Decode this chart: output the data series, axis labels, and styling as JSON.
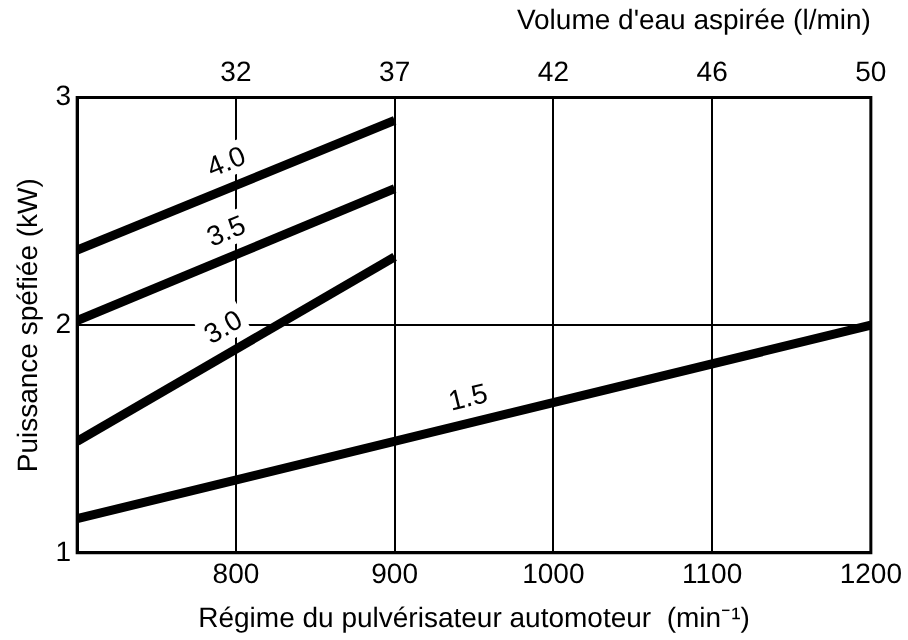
{
  "chart_data": {
    "type": "line",
    "xlabel": "Régime du pulvérisateur automoteur  (min⁻¹)",
    "ylabel": "Puissance spéfiée (kW)",
    "x2label": "Volume d'eau aspirée (l/min)",
    "xlim": [
      700,
      1200
    ],
    "xticks": [
      800,
      900,
      1000,
      1100,
      1200
    ],
    "annotations": [
      "32",
      "37",
      "42",
      "46",
      "50"
    ],
    "ylim": [
      1,
      3
    ],
    "yticks": [
      1,
      2,
      3
    ],
    "grid": true,
    "legend": false,
    "marker": "none",
    "line_style": "solid",
    "series": [
      {
        "name": "4.0",
        "color": "#000000",
        "x": [
          700,
          900
        ],
        "values": [
          2.33,
          2.9
        ]
      },
      {
        "name": "3.5",
        "color": "#000000",
        "x": [
          700,
          900
        ],
        "values": [
          2.02,
          2.6
        ]
      },
      {
        "name": "3.0",
        "color": "#000000",
        "x": [
          700,
          900
        ],
        "values": [
          1.49,
          2.3
        ]
      },
      {
        "name": "1.5",
        "color": "#000000",
        "x": [
          700,
          1200
        ],
        "values": [
          1.15,
          2.0
        ]
      }
    ]
  }
}
